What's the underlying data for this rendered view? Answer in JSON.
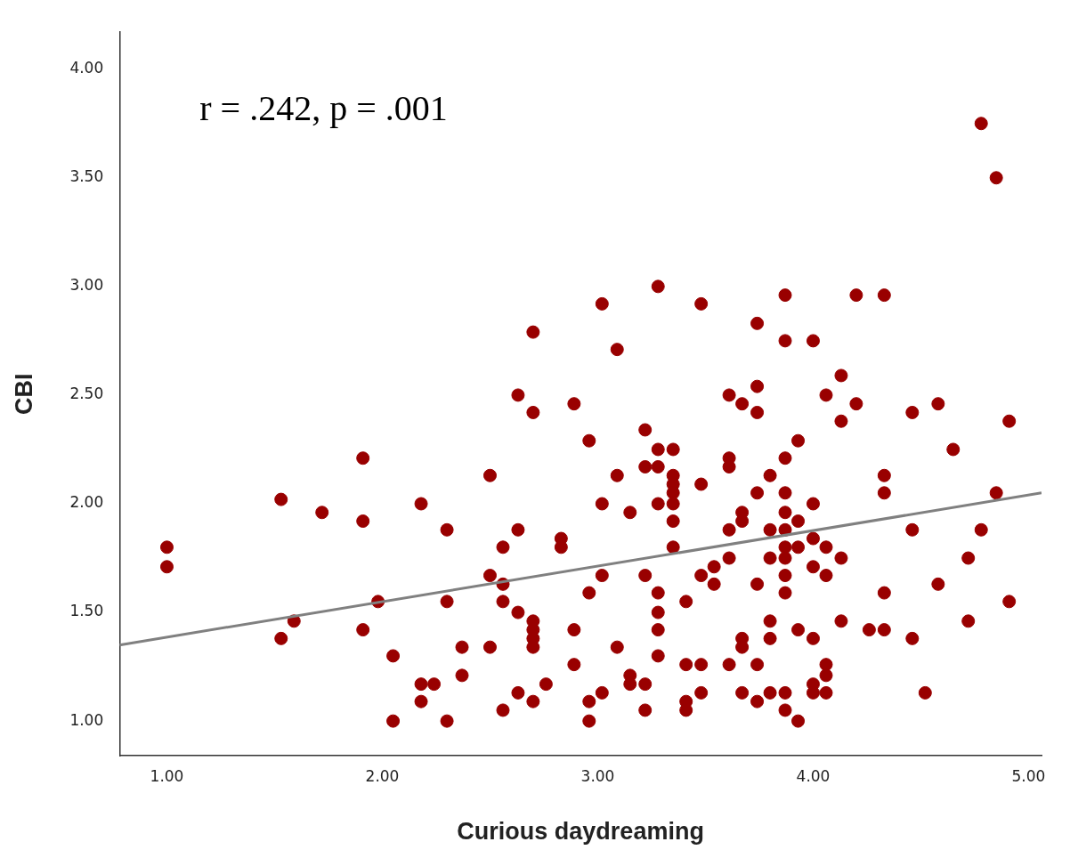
{
  "chart_data": {
    "type": "scatter",
    "xlabel": "Curious daydreaming",
    "ylabel": "CBI",
    "annotations": [
      "r = .242, p = .001"
    ],
    "xlim": [
      0.78,
      5.06
    ],
    "ylim": [
      0.84,
      4.17
    ],
    "xticks": [
      {
        "value": 1,
        "label": "1.00"
      },
      {
        "value": 2,
        "label": "2.00"
      },
      {
        "value": 3,
        "label": "3.00"
      },
      {
        "value": 4,
        "label": "4.00"
      },
      {
        "value": 5,
        "label": "5.00"
      }
    ],
    "yticks": [
      {
        "value": 1,
        "label": "1.00"
      },
      {
        "value": 1.5,
        "label": "1.50"
      },
      {
        "value": 2,
        "label": "2.00"
      },
      {
        "value": 2.5,
        "label": "2.50"
      },
      {
        "value": 3,
        "label": "3.00"
      },
      {
        "value": 3.5,
        "label": "3.50"
      },
      {
        "value": 4,
        "label": "4.00"
      }
    ],
    "grid": false,
    "legend": false,
    "marker": "circle",
    "series": [
      {
        "type": "scatter",
        "color": "#990000",
        "x": [
          1.0,
          1.0,
          1.53,
          1.53,
          1.59,
          1.72,
          1.91,
          1.91,
          1.91,
          1.98,
          2.05,
          2.05,
          2.18,
          2.18,
          2.18,
          2.24,
          2.3,
          2.3,
          2.3,
          2.37,
          2.37,
          2.5,
          2.5,
          2.5,
          2.56,
          2.56,
          2.56,
          2.56,
          2.63,
          2.63,
          2.63,
          2.63,
          2.7,
          2.7,
          2.7,
          2.7,
          2.7,
          2.7,
          2.7,
          2.76,
          2.83,
          2.83,
          2.89,
          2.89,
          2.89,
          2.96,
          2.96,
          2.96,
          2.96,
          3.02,
          3.02,
          3.02,
          3.02,
          3.09,
          3.09,
          3.09,
          3.15,
          3.15,
          3.15,
          3.22,
          3.22,
          3.22,
          3.22,
          3.22,
          3.28,
          3.28,
          3.28,
          3.28,
          3.28,
          3.28,
          3.28,
          3.28,
          3.35,
          3.35,
          3.35,
          3.35,
          3.35,
          3.35,
          3.35,
          3.41,
          3.41,
          3.41,
          3.41,
          3.48,
          3.48,
          3.48,
          3.48,
          3.48,
          3.54,
          3.54,
          3.61,
          3.61,
          3.61,
          3.61,
          3.61,
          3.61,
          3.67,
          3.67,
          3.67,
          3.67,
          3.67,
          3.67,
          3.74,
          3.74,
          3.74,
          3.74,
          3.74,
          3.74,
          3.74,
          3.8,
          3.8,
          3.8,
          3.8,
          3.8,
          3.8,
          3.87,
          3.87,
          3.87,
          3.87,
          3.87,
          3.87,
          3.87,
          3.87,
          3.87,
          3.87,
          3.87,
          3.87,
          3.93,
          3.93,
          3.93,
          3.93,
          3.93,
          4.0,
          4.0,
          4.0,
          4.0,
          4.0,
          4.0,
          4.0,
          4.06,
          4.06,
          4.06,
          4.06,
          4.06,
          4.06,
          4.13,
          4.13,
          4.13,
          4.13,
          4.2,
          4.2,
          4.26,
          4.33,
          4.33,
          4.33,
          4.33,
          4.33,
          4.46,
          4.46,
          4.46,
          4.52,
          4.58,
          4.58,
          4.65,
          4.72,
          4.72,
          4.78,
          4.78,
          4.85,
          4.85,
          4.91,
          4.91
        ],
        "values": [
          1.8,
          1.71,
          2.02,
          1.38,
          1.46,
          1.96,
          2.21,
          1.92,
          1.42,
          1.55,
          1.3,
          1.0,
          2.0,
          1.17,
          1.09,
          1.17,
          1.88,
          1.55,
          1.0,
          1.34,
          1.21,
          2.13,
          1.67,
          1.34,
          1.8,
          1.63,
          1.55,
          1.05,
          2.5,
          1.88,
          1.5,
          1.13,
          2.79,
          2.42,
          1.46,
          1.42,
          1.38,
          1.34,
          1.09,
          1.17,
          1.84,
          1.8,
          2.46,
          1.42,
          1.26,
          2.29,
          1.59,
          1.09,
          1.0,
          2.92,
          2.0,
          1.67,
          1.13,
          2.71,
          2.13,
          1.34,
          1.96,
          1.21,
          1.17,
          2.34,
          2.17,
          1.67,
          1.17,
          1.05,
          3.0,
          2.25,
          2.17,
          2.0,
          1.59,
          1.5,
          1.42,
          1.3,
          2.25,
          2.13,
          2.09,
          2.05,
          2.0,
          1.92,
          1.8,
          1.55,
          1.26,
          1.09,
          1.05,
          2.92,
          2.09,
          1.67,
          1.26,
          1.13,
          1.71,
          1.63,
          2.5,
          2.21,
          2.17,
          1.88,
          1.75,
          1.26,
          2.46,
          1.96,
          1.92,
          1.38,
          1.34,
          1.13,
          2.83,
          2.54,
          2.42,
          2.05,
          1.63,
          1.26,
          1.09,
          2.13,
          1.88,
          1.75,
          1.46,
          1.38,
          1.13,
          2.96,
          2.75,
          2.21,
          2.05,
          1.96,
          1.88,
          1.8,
          1.75,
          1.67,
          1.59,
          1.13,
          1.05,
          2.29,
          1.92,
          1.8,
          1.42,
          1.0,
          2.75,
          2.0,
          1.84,
          1.71,
          1.38,
          1.17,
          1.13,
          2.5,
          1.8,
          1.67,
          1.26,
          1.21,
          1.13,
          2.59,
          2.38,
          1.75,
          1.46,
          2.96,
          2.46,
          1.42,
          2.96,
          2.13,
          2.05,
          1.59,
          1.42,
          2.42,
          1.88,
          1.38,
          1.13,
          2.46,
          1.63,
          2.25,
          1.75,
          1.46,
          3.75,
          1.88,
          3.5,
          2.05,
          2.38,
          1.55
        ]
      },
      {
        "type": "line",
        "color": "#808080",
        "marker": "none",
        "x": [
          0.78,
          5.06
        ],
        "values": [
          1.35,
          2.05
        ]
      }
    ]
  }
}
